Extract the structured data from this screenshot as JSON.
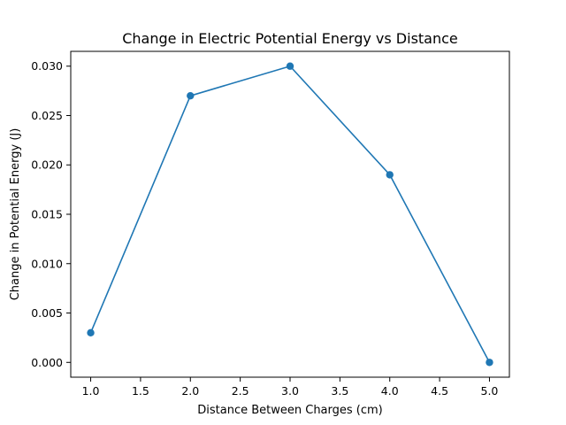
{
  "chart_data": {
    "type": "line",
    "title": "Change in Electric Potential Energy vs Distance",
    "xlabel": "Distance Between Charges (cm)",
    "ylabel": "Change in Potential Energy (J)",
    "x": [
      1.0,
      2.0,
      3.0,
      4.0,
      5.0
    ],
    "series": [
      {
        "values": [
          0.003,
          0.027,
          0.03,
          0.019,
          0.0
        ]
      }
    ],
    "xlim": [
      0.8,
      5.2
    ],
    "ylim": [
      -0.0015,
      0.0315
    ],
    "xticks": [
      1.0,
      1.5,
      2.0,
      2.5,
      3.0,
      3.5,
      4.0,
      4.5,
      5.0
    ],
    "xtick_labels": [
      "1.0",
      "1.5",
      "2.0",
      "2.5",
      "3.0",
      "3.5",
      "4.0",
      "4.5",
      "5.0"
    ],
    "yticks": [
      0.0,
      0.005,
      0.01,
      0.015,
      0.02,
      0.025,
      0.03
    ],
    "ytick_labels": [
      "0.000",
      "0.005",
      "0.010",
      "0.015",
      "0.020",
      "0.025",
      "0.030"
    ],
    "markers": true,
    "grid": false,
    "legend": false,
    "colors": {
      "series": "#1f77b4",
      "axes": "#000000",
      "background": "#ffffff"
    }
  }
}
